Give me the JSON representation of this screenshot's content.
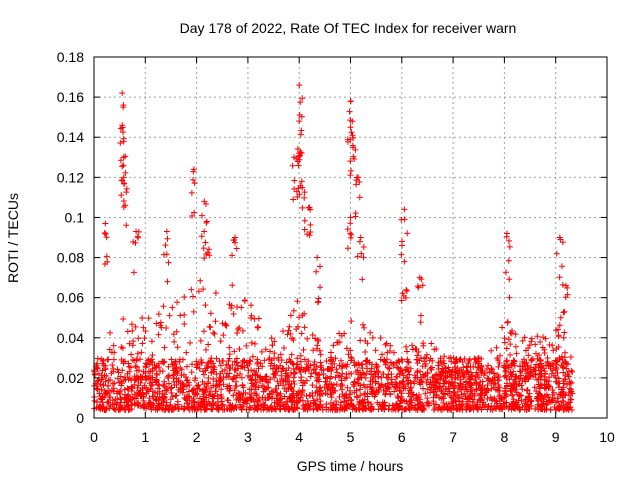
{
  "chart_data": {
    "type": "scatter",
    "title": "Day 178 of 2022, Rate Of TEC Index for receiver warn",
    "xlabel": "GPS time / hours",
    "ylabel": "ROTI / TECUs",
    "xlim": [
      0,
      10
    ],
    "ylim": [
      0,
      0.18
    ],
    "x_ticks": [
      0,
      1,
      2,
      3,
      4,
      5,
      6,
      7,
      8,
      9,
      10
    ],
    "y_ticks": [
      0,
      0.02,
      0.04,
      0.06,
      0.08,
      0.1,
      0.12,
      0.14,
      0.16,
      0.18
    ],
    "x_tick_labels": [
      "0",
      "1",
      "2",
      "3",
      "4",
      "5",
      "6",
      "7",
      "8",
      "9",
      "10"
    ],
    "y_tick_labels": [
      "0",
      "0.02",
      "0.04",
      "0.06",
      "0.08",
      "0.1",
      "0.12",
      "0.14",
      "0.16",
      "0.18"
    ],
    "grid": true,
    "marker": "+",
    "color": "#ff0000",
    "data_x_range": [
      0,
      9.33
    ],
    "envelope_hours": [
      0,
      0.5,
      1,
      1.5,
      2,
      2.5,
      3,
      3.5,
      4,
      4.5,
      5,
      5.5,
      6,
      6.5,
      7,
      7.5,
      8,
      8.5,
      9,
      9.33
    ],
    "envelope_upper_roti": [
      0.03,
      0.05,
      0.05,
      0.06,
      0.07,
      0.06,
      0.06,
      0.04,
      0.06,
      0.035,
      0.05,
      0.045,
      0.035,
      0.04,
      0.03,
      0.03,
      0.05,
      0.04,
      0.045,
      0.03
    ],
    "peaks": [
      {
        "x": 0.22,
        "y": 0.097
      },
      {
        "x": 0.55,
        "y": 0.162
      },
      {
        "x": 0.55,
        "y": 0.146
      },
      {
        "x": 0.58,
        "y": 0.13
      },
      {
        "x": 0.58,
        "y": 0.12
      },
      {
        "x": 0.82,
        "y": 0.093
      },
      {
        "x": 1.42,
        "y": 0.093
      },
      {
        "x": 1.95,
        "y": 0.124
      },
      {
        "x": 2.15,
        "y": 0.108
      },
      {
        "x": 2.2,
        "y": 0.098
      },
      {
        "x": 2.75,
        "y": 0.09
      },
      {
        "x": 3.9,
        "y": 0.13
      },
      {
        "x": 4.0,
        "y": 0.166
      },
      {
        "x": 4.0,
        "y": 0.148
      },
      {
        "x": 4.0,
        "y": 0.132
      },
      {
        "x": 4.05,
        "y": 0.118
      },
      {
        "x": 4.2,
        "y": 0.105
      },
      {
        "x": 4.35,
        "y": 0.08
      },
      {
        "x": 5.0,
        "y": 0.158
      },
      {
        "x": 5.0,
        "y": 0.145
      },
      {
        "x": 5.05,
        "y": 0.135
      },
      {
        "x": 5.15,
        "y": 0.12
      },
      {
        "x": 5.0,
        "y": 0.1
      },
      {
        "x": 5.2,
        "y": 0.09
      },
      {
        "x": 6.05,
        "y": 0.104
      },
      {
        "x": 6.05,
        "y": 0.078
      },
      {
        "x": 6.35,
        "y": 0.07
      },
      {
        "x": 8.05,
        "y": 0.092
      },
      {
        "x": 8.1,
        "y": 0.06
      },
      {
        "x": 9.08,
        "y": 0.09
      },
      {
        "x": 9.2,
        "y": 0.066
      },
      {
        "x": 9.1,
        "y": 0.05
      }
    ]
  }
}
